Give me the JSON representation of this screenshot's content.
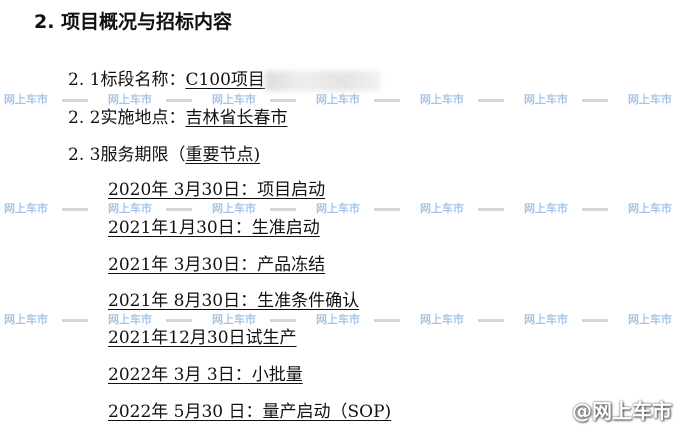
{
  "heading": "2. 项目概况与招标内容",
  "items": [
    {
      "label": "2. 1标段名称：",
      "value": "C100项目"
    },
    {
      "label": "2. 2实施地点：",
      "value": "吉林省长春市"
    },
    {
      "label": "2. 3服务期限（",
      "value": "重要节点)"
    }
  ],
  "milestones": [
    "2020年  3月30日：项目启动",
    "2021年1月30日：生准启动",
    "2021年  3月30日：产品冻结",
    "2021年  8月30日：生准条件确认",
    "2021年12月30日试生产",
    "2022年  3月  3日：小批量",
    "2022年  5月30 日：量产启动（SOP)"
  ],
  "watermark": "网上车市",
  "brand_watermark": "@网上车市"
}
